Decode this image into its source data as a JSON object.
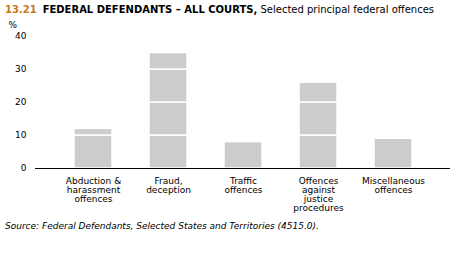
{
  "chart_data": {
    "type": "bar",
    "stacked": true,
    "title": "13.21 FEDERAL DEFENDANTS – ALL COURTS, Selected principal federal offences",
    "caption": "Source: Federal Defendants, Selected States and Territories (4515.0).",
    "ylabel": "%",
    "categories": [
      "Abduction &\nharassment\noffences",
      "Fraud,\ndeception",
      "Traffic\noffences",
      "Offences\nagainst\njustice\nprocedures",
      "Miscellaneous\noffences"
    ],
    "values": [
      [
        10.0,
        2.0
      ],
      [
        10.0,
        10.0,
        10.0,
        5.0
      ],
      [
        8.0
      ],
      [
        10.0,
        10.0,
        6.0
      ],
      [
        9.0
      ]
    ],
    "color": "#cccccc",
    "ylim": [
      0,
      40
    ],
    "yticks": [
      0,
      10,
      20,
      30,
      40
    ],
    "grid": false
  }
}
